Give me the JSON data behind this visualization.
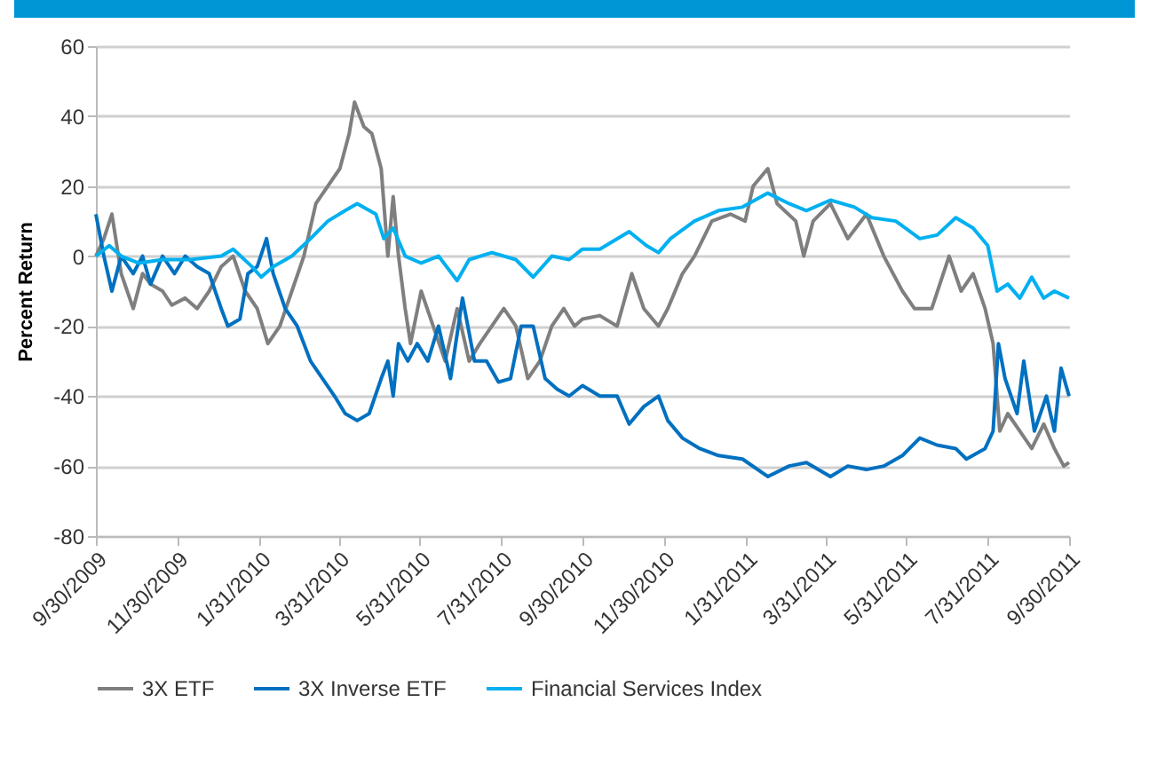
{
  "chart_data": {
    "type": "line",
    "ylabel": "Percent Return",
    "xlim": [
      "2009-09-30",
      "2011-09-30"
    ],
    "xticks": [
      {
        "value": "2009-09-30",
        "label": "9/30/2009"
      },
      {
        "value": "2009-11-30",
        "label": "11/30/2009"
      },
      {
        "value": "2010-01-31",
        "label": "1/31/2010"
      },
      {
        "value": "2010-03-31",
        "label": "3/31/2010"
      },
      {
        "value": "2010-05-31",
        "label": "5/31/2010"
      },
      {
        "value": "2010-07-31",
        "label": "7/31/2010"
      },
      {
        "value": "2010-09-30",
        "label": "9/30/2010"
      },
      {
        "value": "2010-11-30",
        "label": "11/30/2010"
      },
      {
        "value": "2011-01-31",
        "label": "1/31/2011"
      },
      {
        "value": "2011-03-31",
        "label": "3/31/2011"
      },
      {
        "value": "2011-05-31",
        "label": "5/31/2011"
      },
      {
        "value": "2011-07-31",
        "label": "7/31/2011"
      },
      {
        "value": "2011-09-30",
        "label": "9/30/2011"
      }
    ],
    "ylim": [
      -80,
      60
    ],
    "yticks": [
      -80,
      -60,
      -40,
      -20,
      0,
      20,
      40,
      60
    ],
    "grid": "y",
    "legend": "bottom",
    "series": [
      {
        "name": "3X ETF",
        "color": "#7f7f7f",
        "x": [
          "2009-09-30",
          "2009-10-06",
          "2009-10-12",
          "2009-10-19",
          "2009-10-28",
          "2009-11-04",
          "2009-11-10",
          "2009-11-19",
          "2009-11-26",
          "2009-12-06",
          "2009-12-15",
          "2009-12-24",
          "2010-01-02",
          "2010-01-11",
          "2010-01-20",
          "2010-01-29",
          "2010-02-06",
          "2010-02-15",
          "2010-02-24",
          "2010-03-05",
          "2010-03-14",
          "2010-03-23",
          "2010-04-01",
          "2010-04-08",
          "2010-04-12",
          "2010-04-19",
          "2010-04-25",
          "2010-05-02",
          "2010-05-07",
          "2010-05-11",
          "2010-05-15",
          "2010-05-20",
          "2010-05-24",
          "2010-06-01",
          "2010-06-10",
          "2010-06-19",
          "2010-06-28",
          "2010-07-07",
          "2010-07-15",
          "2010-07-24",
          "2010-08-02",
          "2010-08-11",
          "2010-08-20",
          "2010-08-29",
          "2010-09-07",
          "2010-09-16",
          "2010-09-24",
          "2010-09-30",
          "2010-10-13",
          "2010-10-26",
          "2010-11-06",
          "2010-11-15",
          "2010-11-26",
          "2010-12-03",
          "2010-12-14",
          "2010-12-23",
          "2011-01-05",
          "2011-01-19",
          "2011-01-30",
          "2011-02-05",
          "2011-02-16",
          "2011-02-23",
          "2011-03-09",
          "2011-03-15",
          "2011-03-22",
          "2011-04-04",
          "2011-04-17",
          "2011-05-01",
          "2011-05-14",
          "2011-05-28",
          "2011-06-06",
          "2011-06-19",
          "2011-07-02",
          "2011-07-11",
          "2011-07-20",
          "2011-07-29",
          "2011-08-04",
          "2011-08-09",
          "2011-08-15",
          "2011-08-24",
          "2011-09-02",
          "2011-09-11",
          "2011-09-19",
          "2011-09-26",
          "2011-09-30"
        ],
        "values": [
          0,
          5,
          12,
          -5,
          -15,
          -5,
          -8,
          -10,
          -14,
          -12,
          -15,
          -10,
          -3,
          0,
          -10,
          -15,
          -25,
          -20,
          -10,
          0,
          15,
          20,
          25,
          35,
          44,
          37,
          35,
          25,
          0,
          17,
          0,
          -15,
          -25,
          -10,
          -20,
          -30,
          -15,
          -30,
          -25,
          -20,
          -15,
          -20,
          -35,
          -30,
          -20,
          -15,
          -20,
          -18,
          -17,
          -20,
          -5,
          -15,
          -20,
          -15,
          -5,
          0,
          10,
          12,
          10,
          20,
          25,
          15,
          10,
          0,
          10,
          15,
          5,
          12,
          0,
          -10,
          -15,
          -15,
          0,
          -10,
          -5,
          -15,
          -25,
          -50,
          -45,
          -50,
          -55,
          -48,
          -55,
          -60,
          -59
        ]
      },
      {
        "name": "3X Inverse ETF",
        "color": "#0070c0",
        "x": [
          "2009-09-30",
          "2009-10-06",
          "2009-10-12",
          "2009-10-19",
          "2009-10-28",
          "2009-11-04",
          "2009-11-10",
          "2009-11-19",
          "2009-11-28",
          "2009-12-06",
          "2009-12-15",
          "2009-12-24",
          "2010-01-02",
          "2010-01-07",
          "2010-01-16",
          "2010-01-22",
          "2010-01-29",
          "2010-02-05",
          "2010-02-10",
          "2010-02-19",
          "2010-02-28",
          "2010-03-10",
          "2010-03-19",
          "2010-03-28",
          "2010-04-05",
          "2010-04-14",
          "2010-04-23",
          "2010-05-02",
          "2010-05-07",
          "2010-05-11",
          "2010-05-15",
          "2010-05-22",
          "2010-05-29",
          "2010-06-06",
          "2010-06-14",
          "2010-06-23",
          "2010-07-02",
          "2010-07-11",
          "2010-07-20",
          "2010-07-29",
          "2010-08-07",
          "2010-08-15",
          "2010-08-24",
          "2010-09-02",
          "2010-09-11",
          "2010-09-20",
          "2010-09-30",
          "2010-10-13",
          "2010-10-26",
          "2010-11-04",
          "2010-11-15",
          "2010-11-26",
          "2010-12-03",
          "2010-12-14",
          "2010-12-27",
          "2011-01-10",
          "2011-01-28",
          "2011-02-16",
          "2011-03-04",
          "2011-03-17",
          "2011-04-04",
          "2011-04-17",
          "2011-05-01",
          "2011-05-14",
          "2011-05-28",
          "2011-06-10",
          "2011-06-23",
          "2011-07-07",
          "2011-07-15",
          "2011-07-29",
          "2011-08-04",
          "2011-08-08",
          "2011-08-13",
          "2011-08-22",
          "2011-08-27",
          "2011-09-04",
          "2011-09-13",
          "2011-09-19",
          "2011-09-24",
          "2011-09-30"
        ],
        "values": [
          12,
          0,
          -10,
          0,
          -5,
          0,
          -8,
          0,
          -5,
          0,
          -3,
          -5,
          -15,
          -20,
          -18,
          -5,
          -3,
          5,
          -5,
          -15,
          -20,
          -30,
          -35,
          -40,
          -45,
          -47,
          -45,
          -35,
          -30,
          -40,
          -25,
          -30,
          -25,
          -30,
          -20,
          -35,
          -12,
          -30,
          -30,
          -36,
          -35,
          -20,
          -20,
          -35,
          -38,
          -40,
          -37,
          -40,
          -40,
          -48,
          -43,
          -40,
          -47,
          -52,
          -55,
          -57,
          -58,
          -63,
          -60,
          -59,
          -63,
          -60,
          -61,
          -60,
          -57,
          -52,
          -54,
          -55,
          -58,
          -55,
          -50,
          -25,
          -35,
          -45,
          -30,
          -50,
          -40,
          -50,
          -32,
          -40
        ]
      },
      {
        "name": "Financial Services Index",
        "color": "#00b0f0",
        "x": [
          "2009-09-30",
          "2009-10-10",
          "2009-10-19",
          "2009-11-01",
          "2009-11-19",
          "2009-12-10",
          "2010-01-02",
          "2010-01-11",
          "2010-01-25",
          "2010-02-01",
          "2010-02-10",
          "2010-02-24",
          "2010-03-10",
          "2010-03-23",
          "2010-04-05",
          "2010-04-14",
          "2010-04-28",
          "2010-05-04",
          "2010-05-11",
          "2010-05-20",
          "2010-06-01",
          "2010-06-14",
          "2010-06-28",
          "2010-07-07",
          "2010-07-24",
          "2010-08-11",
          "2010-08-24",
          "2010-09-07",
          "2010-09-20",
          "2010-09-30",
          "2010-10-13",
          "2010-11-04",
          "2010-11-17",
          "2010-11-26",
          "2010-12-05",
          "2010-12-23",
          "2011-01-10",
          "2011-01-28",
          "2011-02-16",
          "2011-03-04",
          "2011-03-17",
          "2011-04-04",
          "2011-04-22",
          "2011-05-05",
          "2011-05-23",
          "2011-06-10",
          "2011-06-23",
          "2011-07-07",
          "2011-07-20",
          "2011-07-31",
          "2011-08-07",
          "2011-08-15",
          "2011-08-24",
          "2011-09-02",
          "2011-09-11",
          "2011-09-19",
          "2011-09-30"
        ],
        "values": [
          0,
          3,
          0,
          -2,
          -1,
          -1,
          0,
          2,
          -3,
          -6,
          -3,
          0,
          5,
          10,
          13,
          15,
          12,
          5,
          8,
          0,
          -2,
          0,
          -7,
          -1,
          1,
          -1,
          -6,
          0,
          -1,
          2,
          2,
          7,
          3,
          1,
          5,
          10,
          13,
          14,
          18,
          15,
          13,
          16,
          14,
          11,
          10,
          5,
          6,
          11,
          8,
          3,
          -10,
          -8,
          -12,
          -6,
          -12,
          -10,
          -12
        ]
      }
    ]
  }
}
